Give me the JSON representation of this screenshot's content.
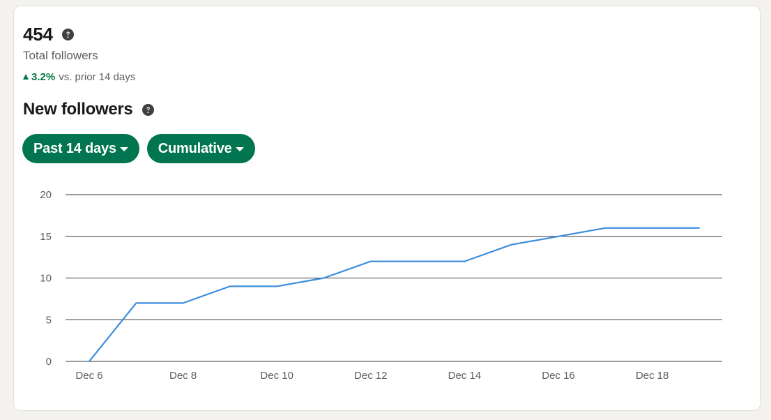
{
  "summary": {
    "total_value": "454",
    "total_label": "Total followers",
    "change_value": "3.2%",
    "change_text": "vs. prior 14 days",
    "change_direction": "up",
    "help_icon": "question-circle-icon"
  },
  "section": {
    "title": "New followers",
    "help_icon": "question-circle-icon"
  },
  "filters": {
    "range_label": "Past 14 days",
    "mode_label": "Cumulative",
    "caret_icon": "caret-down-icon"
  },
  "colors": {
    "accent": "#01754f",
    "positive": "#057642",
    "line": "#3b8ddf"
  },
  "chart_data": {
    "type": "line",
    "x": [
      "Dec 6",
      "Dec 7",
      "Dec 8",
      "Dec 9",
      "Dec 10",
      "Dec 11",
      "Dec 12",
      "Dec 13",
      "Dec 14",
      "Dec 15",
      "Dec 16",
      "Dec 17",
      "Dec 18",
      "Dec 19"
    ],
    "x_tick_labels": [
      "Dec 6",
      "Dec 8",
      "Dec 10",
      "Dec 12",
      "Dec 14",
      "Dec 16",
      "Dec 18"
    ],
    "series": [
      {
        "values": [
          0,
          7,
          7,
          9,
          9,
          10,
          12,
          12,
          12,
          14,
          15,
          16,
          16,
          16
        ]
      }
    ],
    "y_ticks": [
      0,
      5,
      10,
      15,
      20
    ],
    "ylim": [
      0,
      20
    ],
    "grid": "horizontal",
    "title": "",
    "xlabel": "",
    "ylabel": ""
  }
}
